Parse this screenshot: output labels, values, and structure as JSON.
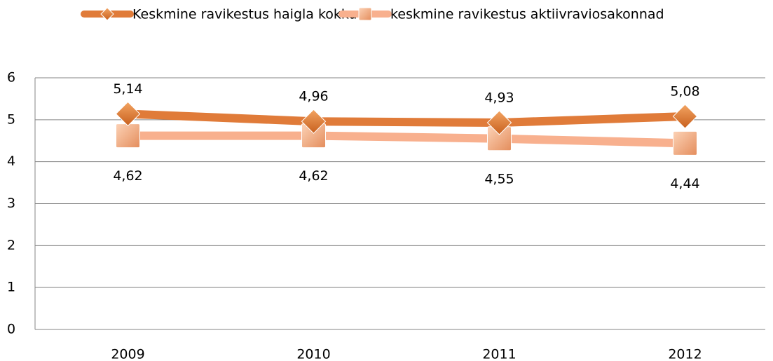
{
  "chart_data": {
    "type": "line",
    "categories": [
      "2009",
      "2010",
      "2011",
      "2012"
    ],
    "series": [
      {
        "name": "Keskmine ravikestus haigla kokku",
        "color": "#e07b39",
        "marker": "diamond",
        "values": [
          5.14,
          4.96,
          4.93,
          5.08
        ],
        "value_labels": [
          "5,14",
          "4,96",
          "4,93",
          "5,08"
        ]
      },
      {
        "name": "keskmine ravikestus aktiivraviosakonnad",
        "color": "#f8b08e",
        "marker": "square",
        "values": [
          4.62,
          4.62,
          4.55,
          4.44
        ],
        "value_labels": [
          "4,62",
          "4,62",
          "4,55",
          "4,44"
        ]
      }
    ],
    "ylim": [
      0,
      6
    ],
    "yticks": [
      0,
      1,
      2,
      3,
      4,
      5,
      6
    ],
    "grid": true,
    "legend": "top"
  }
}
